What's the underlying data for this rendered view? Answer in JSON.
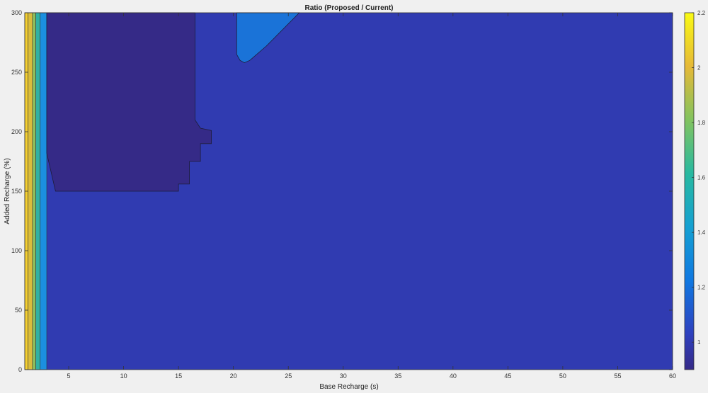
{
  "chart_data": {
    "type": "contour",
    "title": "Ratio (Proposed / Current)",
    "xlabel": "Base Recharge (s)",
    "ylabel": "Added Recharge (%)",
    "xlim": [
      1,
      60
    ],
    "ylim": [
      0,
      300
    ],
    "xticks": [
      5,
      10,
      15,
      20,
      25,
      30,
      35,
      40,
      45,
      50,
      55,
      60
    ],
    "yticks": [
      0,
      50,
      100,
      150,
      200,
      250,
      300
    ],
    "colorbar": {
      "range": [
        0.9,
        2.2
      ],
      "ticks": [
        1,
        1.2,
        1.4,
        1.6,
        1.8,
        2,
        2.2
      ],
      "colormap": "parula"
    },
    "background_level": 1.0,
    "regions": [
      {
        "level": 0.95,
        "color": "#352a87",
        "polygon": [
          [
            3.8,
            150
          ],
          [
            15,
            150
          ],
          [
            15,
            156
          ],
          [
            16,
            156
          ],
          [
            16,
            175
          ],
          [
            17,
            175
          ],
          [
            17,
            190
          ],
          [
            18,
            190
          ],
          [
            18,
            201
          ],
          [
            17,
            203
          ],
          [
            16.5,
            210
          ],
          [
            16.5,
            300
          ],
          [
            3,
            300
          ],
          [
            3,
            182
          ],
          [
            3.8,
            150
          ]
        ]
      },
      {
        "level": 1.1,
        "color": "#1a73d8",
        "polygon": [
          [
            20.3,
            300
          ],
          [
            20.3,
            265
          ],
          [
            20.6,
            260
          ],
          [
            21,
            258
          ],
          [
            21.5,
            260
          ],
          [
            23,
            272
          ],
          [
            26,
            300
          ]
        ]
      }
    ],
    "vertical_bands": [
      {
        "x": [
          1.0,
          1.3
        ],
        "level": 2.2,
        "color": "#f4cf30"
      },
      {
        "x": [
          1.3,
          1.7
        ],
        "level": 1.9,
        "color": "#d9bc3c"
      },
      {
        "x": [
          1.7,
          2.0
        ],
        "level": 1.7,
        "color": "#8ebf5c"
      },
      {
        "x": [
          2.0,
          2.4
        ],
        "level": 1.5,
        "color": "#2fb1a4"
      },
      {
        "x": [
          2.4,
          3.0
        ],
        "level": 1.2,
        "color": "#1b8fe0"
      }
    ]
  }
}
